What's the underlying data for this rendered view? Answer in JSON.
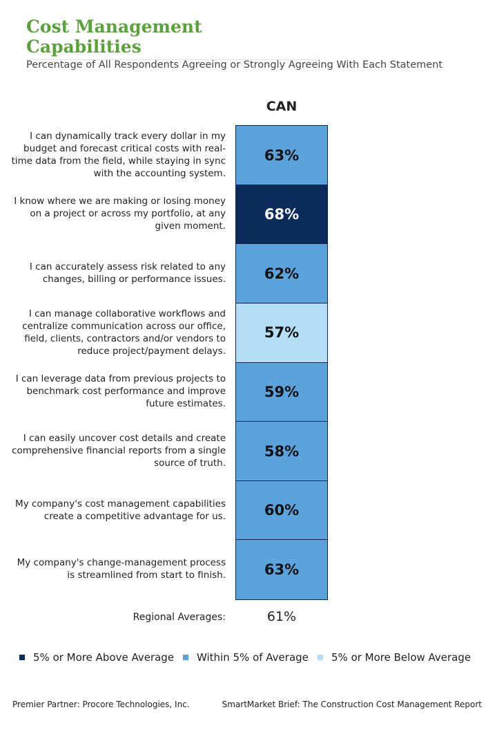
{
  "chart_data": {
    "type": "heatmap",
    "title": "Cost Management Capabilities",
    "subtitle": "Percentage of All Respondents Agreeing or Strongly Agreeing With Each Statement",
    "column": "CAN",
    "categories": [
      "I can dynamically track every dollar in my budget and forecast critical costs with real-time data from the field, while staying in sync with the accounting system.",
      "I know where we are making or losing money on a project or across my portfolio, at any given moment.",
      "I can accurately assess risk related to any changes, billing or performance issues.",
      "I can manage collaborative workflows and centralize communication across our office, field, clients, contractors and/or vendors to reduce project/payment delays.",
      "I can leverage data from previous projects to benchmark cost performance and improve future estimates.",
      "I can easily uncover cost details and create comprehensive financial reports from a single source of truth.",
      "My company's cost management capabilities create a competitive advantage for us.",
      "My company's change-management process is streamlined from start to finish."
    ],
    "values": [
      63,
      68,
      62,
      57,
      59,
      58,
      60,
      63
    ],
    "value_labels": [
      "63%",
      "68%",
      "62%",
      "57%",
      "59%",
      "58%",
      "60%",
      "63%"
    ],
    "colors": [
      "#5ba3dc",
      "#0b2c5a",
      "#5ba3dc",
      "#b4def6",
      "#5ba3dc",
      "#5ba3dc",
      "#5ba3dc",
      "#5ba3dc"
    ],
    "average_label": "Regional Averages:",
    "average": 61,
    "average_value_label": "61%",
    "legend": [
      {
        "name": "5% or More Above Average",
        "color": "#0b2c5a"
      },
      {
        "name": "Within 5% of Average",
        "color": "#5ba3dc"
      },
      {
        "name": "5% or More Below Average",
        "color": "#b4def6"
      }
    ],
    "footer_left": "Premier Partner: Procore Technologies, Inc.",
    "footer_right": "SmartMarket Brief: The Construction Cost Management Report"
  }
}
